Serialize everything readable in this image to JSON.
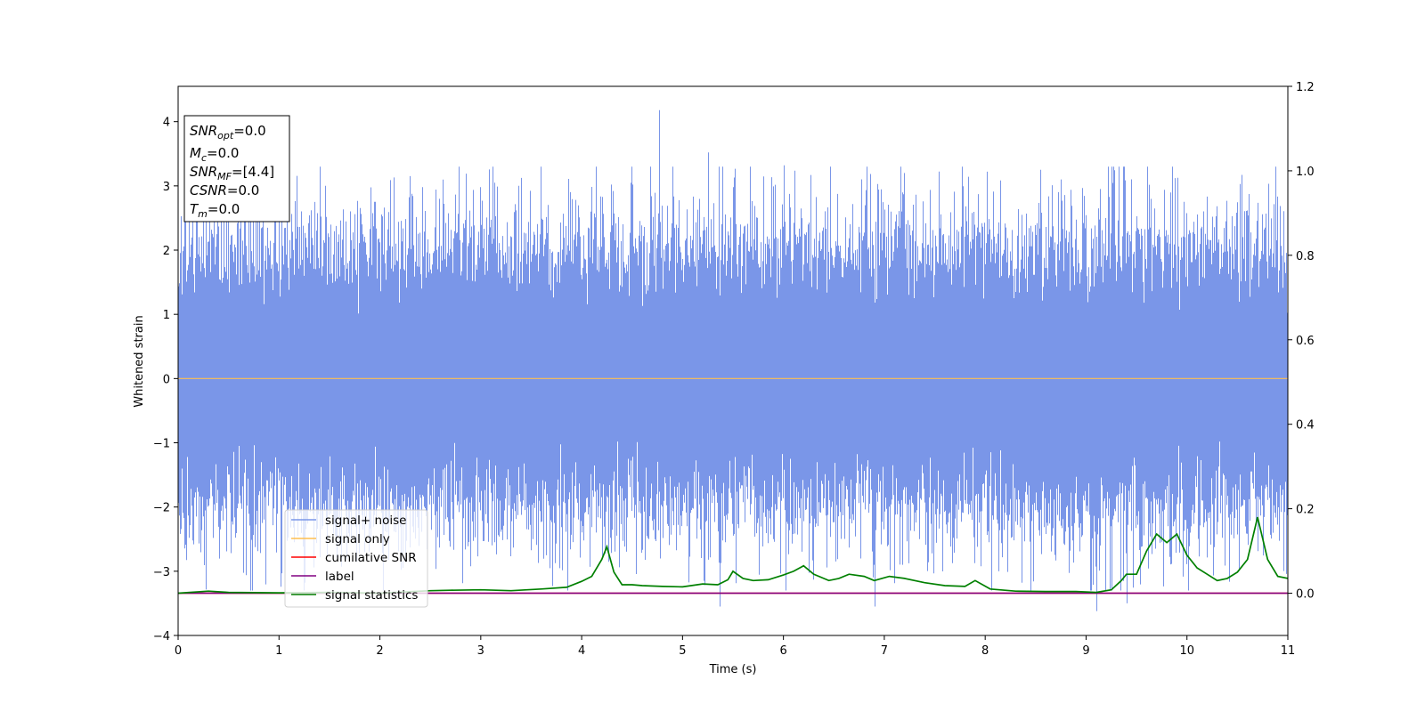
{
  "chart_data": {
    "type": "line",
    "title": "",
    "xlabel": "Time (s)",
    "ylabel": "Whitened strain",
    "y2label": "",
    "xlim": [
      0,
      11
    ],
    "ylim": [
      -4,
      4.55
    ],
    "y2lim": [
      -0.1,
      1.2
    ],
    "x_ticks": [
      0,
      1,
      2,
      3,
      4,
      5,
      6,
      7,
      8,
      9,
      10,
      11
    ],
    "y_ticks": [
      -4,
      -3,
      -2,
      -1,
      0,
      1,
      2,
      3,
      4
    ],
    "y2_ticks": [
      0.0,
      0.2,
      0.4,
      0.6,
      0.8,
      1.0,
      1.2
    ],
    "grid": false,
    "legend_position": "lower-left",
    "annotation": {
      "lines": [
        {
          "base": "SNR",
          "sub": "opt",
          "rest": "=0.0"
        },
        {
          "base": "M",
          "sub": "c",
          "rest": "=0.0"
        },
        {
          "base": "SNR",
          "sub": "MF",
          "rest": "=[4.4]"
        },
        {
          "base": "CSNR",
          "sub": "",
          "rest": "=0.0"
        },
        {
          "base": "T",
          "sub": "m",
          "rest": "=0.0"
        }
      ]
    },
    "series": [
      {
        "name": "signal+ noise",
        "axis": "left",
        "color": "#7a96e8",
        "description_values": "dense whitened noise, approximately Gaussian with unit variance, 4096 Hz over 0-11 s",
        "notable_peaks": [
          {
            "x": 4.77,
            "y": 4.18
          },
          {
            "x": 5.25,
            "y": 3.52
          },
          {
            "x": 6.0,
            "y": 3.32
          },
          {
            "x": 11.0,
            "y": 3.25
          },
          {
            "x": 8.55,
            "y": 3.25
          },
          {
            "x": 9.1,
            "y": -3.62
          },
          {
            "x": 5.37,
            "y": -3.55
          },
          {
            "x": 6.9,
            "y": -3.55
          },
          {
            "x": 9.4,
            "y": -3.5
          }
        ]
      },
      {
        "name": "signal only",
        "axis": "left",
        "color": "#ffbf50",
        "x": [
          0,
          11
        ],
        "y": [
          0,
          0
        ]
      },
      {
        "name": "cumilative SNR",
        "axis": "right",
        "color": "#ff0000",
        "x": [
          0,
          11
        ],
        "y": [
          0,
          0
        ]
      },
      {
        "name": "label",
        "axis": "right",
        "color": "#800080",
        "x": [
          0,
          11
        ],
        "y": [
          0,
          0
        ]
      },
      {
        "name": "signal statistics",
        "axis": "right",
        "color": "#008000",
        "x": [
          0.0,
          0.3,
          0.5,
          1.0,
          1.5,
          2.0,
          2.5,
          2.7,
          3.0,
          3.3,
          3.6,
          3.85,
          4.0,
          4.1,
          4.2,
          4.25,
          4.32,
          4.4,
          4.5,
          4.6,
          4.8,
          5.0,
          5.2,
          5.35,
          5.45,
          5.5,
          5.6,
          5.7,
          5.85,
          6.0,
          6.1,
          6.2,
          6.3,
          6.45,
          6.55,
          6.65,
          6.8,
          6.9,
          7.05,
          7.2,
          7.4,
          7.6,
          7.8,
          7.9,
          8.05,
          8.3,
          8.6,
          8.9,
          9.1,
          9.25,
          9.35,
          9.4,
          9.5,
          9.6,
          9.7,
          9.8,
          9.9,
          10.0,
          10.1,
          10.2,
          10.3,
          10.4,
          10.5,
          10.6,
          10.7,
          10.8,
          10.9,
          11.0
        ],
        "y": [
          0.0,
          0.005,
          0.002,
          0.001,
          0.002,
          0.0,
          0.006,
          0.007,
          0.008,
          0.006,
          0.01,
          0.014,
          0.028,
          0.04,
          0.08,
          0.11,
          0.05,
          0.02,
          0.02,
          0.018,
          0.016,
          0.015,
          0.022,
          0.02,
          0.032,
          0.052,
          0.035,
          0.03,
          0.032,
          0.043,
          0.052,
          0.065,
          0.045,
          0.03,
          0.035,
          0.045,
          0.04,
          0.03,
          0.04,
          0.035,
          0.025,
          0.018,
          0.016,
          0.03,
          0.01,
          0.005,
          0.004,
          0.004,
          0.002,
          0.008,
          0.03,
          0.045,
          0.045,
          0.1,
          0.14,
          0.12,
          0.14,
          0.09,
          0.06,
          0.045,
          0.03,
          0.035,
          0.05,
          0.08,
          0.18,
          0.08,
          0.04,
          0.035
        ]
      }
    ]
  }
}
